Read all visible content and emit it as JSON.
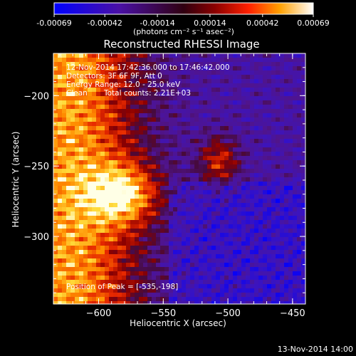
{
  "chart_data": {
    "type": "heatmap",
    "title": "Reconstructed RHESSI Image",
    "xlabel": "Heliocentric X (arcsec)",
    "ylabel": "Heliocentric Y (arcsec)",
    "xlim": [
      -635,
      -440
    ],
    "ylim": [
      -348,
      -170
    ],
    "x_ticks": [
      -600,
      -550,
      -500,
      -450
    ],
    "y_ticks": [
      -300,
      -250,
      -200
    ],
    "colorbar": {
      "min": -0.00069,
      "max": 0.00069,
      "ticks": [
        "-0.00069",
        "-0.00042",
        "-0.00014",
        "0.00014",
        "0.00042",
        "0.00069"
      ],
      "unit_label": "(photons cm⁻² s⁻¹ asec⁻²)"
    },
    "annotations": {
      "time_range": "12-Nov-2014 17:42:36.000 to 17:46:42.000",
      "detectors": "Detectors: 3F 6F 9F, Att 0",
      "energy": "Energy Range: 12.0 - 25.0 keV",
      "method": "Clean",
      "counts": "Total counts: 2.21E+03",
      "peak": "Position of Peak = [-535,-198]"
    },
    "peak_position": [
      -535,
      -198
    ],
    "grid": false
  },
  "footer_date": "13-Nov-2014 14:00"
}
